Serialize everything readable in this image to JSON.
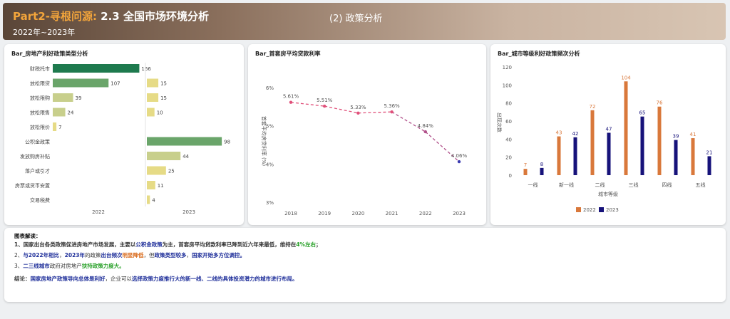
{
  "header": {
    "title_accent": "Part2-寻根问源:",
    "title_main": " 2.3 全国市场环境分析",
    "subtitle": "2022年~2023年",
    "section": "(2) 政策分析"
  },
  "colors": {
    "green_dark": "#1e7a4e",
    "green_mid": "#6aa56a",
    "khaki": "#c8cf8c",
    "yellow": "#e6db86",
    "orange": "#d9783b",
    "navy": "#16127a",
    "pink": "#e0507a"
  },
  "chart1": {
    "title": "Bar_房地产利好政策类型分析",
    "chart_data": {
      "type": "bar",
      "orientation": "horizontal",
      "categories": [
        "财税托市",
        "放松限贷",
        "放松限购",
        "放松限售",
        "放松限价",
        "公积金政策",
        "发放购房补贴",
        "落户或引才",
        "房票或货币安置",
        "交易税费"
      ],
      "series": [
        {
          "name": "2022",
          "values": [
            166,
            107,
            39,
            24,
            7,
            null,
            null,
            null,
            null,
            null
          ]
        },
        {
          "name": "2023",
          "values": [
            null,
            15,
            15,
            10,
            null,
            98,
            44,
            25,
            11,
            4
          ]
        }
      ],
      "xlabel": "",
      "ylabel": ""
    }
  },
  "chart2": {
    "title": "Bar_首套房平均贷款利率",
    "chart_data": {
      "type": "line",
      "x": [
        "2018",
        "2019",
        "2020",
        "2021",
        "2022",
        "2023"
      ],
      "values": [
        5.61,
        5.51,
        5.33,
        5.36,
        4.84,
        4.06
      ],
      "labels": [
        "5.61%",
        "5.51%",
        "5.33%",
        "5.36%",
        "4.84%",
        "4.06%"
      ],
      "ylabel": "首套平均房贷利率 (%)",
      "yticks": [
        "6%",
        "5%",
        "4%",
        "3%"
      ],
      "ylim": [
        3,
        6.2
      ]
    }
  },
  "chart3": {
    "title": "Bar_城市等级利好政策频次分析",
    "chart_data": {
      "type": "bar",
      "categories": [
        "一线",
        "新一线",
        "二线",
        "三线",
        "四线",
        "五线"
      ],
      "series": [
        {
          "name": "2022",
          "values": [
            7,
            43,
            72,
            104,
            76,
            41
          ]
        },
        {
          "name": "2023",
          "values": [
            8,
            42,
            47,
            65,
            39,
            21
          ]
        }
      ],
      "xlabel": "城市等级",
      "ylabel": "出现次数",
      "yticks": [
        "120",
        "100",
        "80",
        "60",
        "40",
        "20",
        "0"
      ],
      "ylim": [
        0,
        120
      ],
      "legend": "bottom"
    }
  },
  "notes": {
    "heading": "图表解读：",
    "l1": [
      "1、国家出台各类政策促进房地产市场发展，主要以",
      "公积金政策",
      "为主，首套房平均贷款利率已降到近六年来最低，维持在",
      "4%左右",
      "；"
    ],
    "l2": [
      "2、",
      "与2022年相比",
      "，",
      "2023年",
      "的政策",
      "出台频次",
      "明显降低",
      "，但",
      "政策类型较多",
      "，",
      "国家开始多方位调控。"
    ],
    "l3": [
      "3、",
      "二三线城市",
      "政府对房地产",
      "扶持政策力度大。"
    ],
    "l4": [
      "结论：",
      "国家房地产政策导向总体是利好",
      "，企业可以",
      "选择政策力度推行大的新一线、二线的具体投资潜力的城市进行布局。"
    ]
  }
}
